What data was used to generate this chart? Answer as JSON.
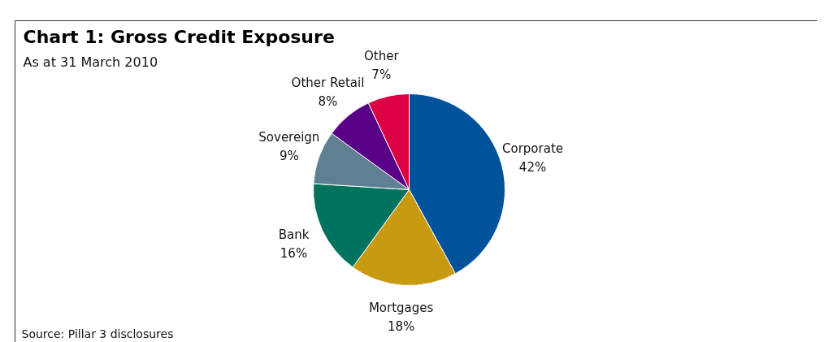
{
  "chart_data": {
    "type": "pie",
    "title": "Chart 1: Gross Credit Exposure",
    "subtitle": "As at 31 March 2010",
    "categories": [
      "Corporate",
      "Mortgages",
      "Bank",
      "Sovereign",
      "Other Retail",
      "Other"
    ],
    "values": [
      42,
      18,
      16,
      9,
      8,
      7
    ],
    "value_labels": [
      "42%",
      "18%",
      "16%",
      "9%",
      "8%",
      "7%"
    ],
    "colors": [
      "#00539b",
      "#c89a12",
      "#00735f",
      "#5f8093",
      "#5a0087",
      "#dc0045"
    ],
    "annotations": [
      "Source: Pillar 3 disclosures"
    ]
  }
}
